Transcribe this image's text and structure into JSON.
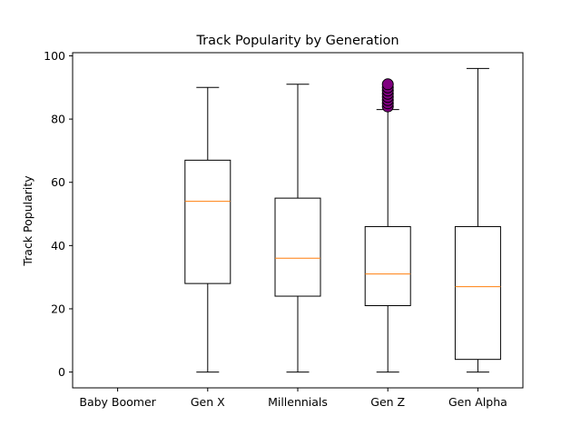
{
  "chart_data": {
    "type": "box",
    "title": "Track Popularity by Generation",
    "xlabel": "",
    "ylabel": "Track Popularity",
    "ylim": [
      -5,
      101
    ],
    "yticks": [
      0,
      20,
      40,
      60,
      80,
      100
    ],
    "grid": false,
    "categories": [
      "Baby Boomer",
      "Gen X",
      "Millennials",
      "Gen Z",
      "Gen Alpha"
    ],
    "boxes": [
      null,
      {
        "whisker_low": 0,
        "q1": 28,
        "median": 54,
        "q3": 67,
        "whisker_high": 90,
        "outliers": []
      },
      {
        "whisker_low": 0,
        "q1": 24,
        "median": 36,
        "q3": 55,
        "whisker_high": 91,
        "outliers": []
      },
      {
        "whisker_low": 0,
        "q1": 21,
        "median": 31,
        "q3": 46,
        "whisker_high": 83,
        "outliers": [
          84,
          85,
          86,
          87,
          88,
          89,
          90,
          91
        ]
      },
      {
        "whisker_low": 0,
        "q1": 4,
        "median": 27,
        "q3": 46,
        "whisker_high": 96,
        "outliers": []
      }
    ],
    "colors": {
      "box": "#000000",
      "median": "#ff7f0e",
      "outlier_fill": "#800080",
      "outlier_edge": "#000000"
    }
  }
}
